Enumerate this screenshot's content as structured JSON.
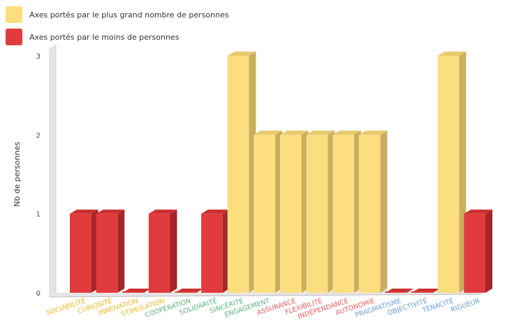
{
  "colors": {
    "high": "#FDDE7F",
    "high_side": "#C9AE60",
    "high_top": "#E8C96E",
    "low": "#E23B3E",
    "low_side": "#A52528",
    "low_top": "#C9302F",
    "cat_yellow": "#E8B820",
    "cat_green": "#5BAE7B",
    "cat_red": "#E35A5A",
    "cat_blue": "#6A9BD1"
  },
  "chart_data": {
    "type": "bar",
    "ylabel": "Nb de personnes",
    "ylim": [
      0,
      3
    ],
    "yticks": [
      "0",
      "1",
      "2",
      "3"
    ],
    "categories": [
      {
        "label": "SOCIABILITÉ",
        "color": "cat_yellow"
      },
      {
        "label": "CURIOSITÉ",
        "color": "cat_yellow"
      },
      {
        "label": "INNOVATION",
        "color": "cat_yellow"
      },
      {
        "label": "STIMULATION",
        "color": "cat_yellow"
      },
      {
        "label": "COOPÉRATION",
        "color": "cat_green"
      },
      {
        "label": "SOLIDARITÉ",
        "color": "cat_green"
      },
      {
        "label": "SINCÉRITÉ",
        "color": "cat_green"
      },
      {
        "label": "ENGAGEMENT",
        "color": "cat_green"
      },
      {
        "label": "ASSURANCE",
        "color": "cat_red"
      },
      {
        "label": "FLEXIBILITÉ",
        "color": "cat_red"
      },
      {
        "label": "INDÉPENDANCE",
        "color": "cat_red"
      },
      {
        "label": "AUTONOMIE",
        "color": "cat_red"
      },
      {
        "label": "PRAGMATISME",
        "color": "cat_blue"
      },
      {
        "label": "OBJECTIVITÉ",
        "color": "cat_blue"
      },
      {
        "label": "TÉNACITÉ",
        "color": "cat_blue"
      },
      {
        "label": "RIGUEUR",
        "color": "cat_blue"
      }
    ],
    "series": [
      {
        "name": "Axes portés par le plus grand nombre de personnes",
        "color": "high",
        "values": [
          0,
          0,
          0,
          0,
          0,
          0,
          3,
          2,
          2,
          2,
          2,
          2,
          0,
          0,
          3,
          0
        ]
      },
      {
        "name": "Axes portés par le moins de personnes",
        "color": "low",
        "values": [
          1,
          1,
          0,
          1,
          0,
          1,
          0,
          0,
          0,
          0,
          0,
          0,
          0,
          0,
          0,
          1
        ]
      }
    ],
    "grid": false,
    "legend": "top-left"
  }
}
